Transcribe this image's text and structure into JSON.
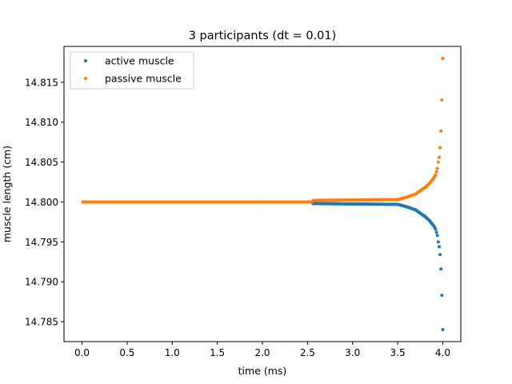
{
  "chart_data": {
    "type": "scatter",
    "title": "3 participants (dt = 0.01)",
    "xlabel": "time (ms)",
    "ylabel": "muscle length (cm)",
    "xlim": [
      -0.2,
      4.2
    ],
    "ylim": [
      14.7825,
      14.8195
    ],
    "xticks": [
      0.0,
      0.5,
      1.0,
      1.5,
      2.0,
      2.5,
      3.0,
      3.5,
      4.0
    ],
    "xtick_labels": [
      "0.0",
      "0.5",
      "1.0",
      "1.5",
      "2.0",
      "2.5",
      "3.0",
      "3.5",
      "4.0"
    ],
    "yticks": [
      14.785,
      14.79,
      14.795,
      14.8,
      14.805,
      14.81,
      14.815
    ],
    "ytick_labels": [
      "14.785",
      "14.790",
      "14.795",
      "14.800",
      "14.805",
      "14.810",
      "14.815"
    ],
    "grid": false,
    "legend_position": "upper-left",
    "x_range": {
      "start": 0.01,
      "end": 4.0,
      "step": 0.01
    },
    "series": [
      {
        "name": "active muscle",
        "color": "#1f77b4",
        "baseline": 14.8,
        "offset_start": 2.56,
        "initial_offset": -0.0002,
        "x": [
          3.5,
          3.6,
          3.7,
          3.8,
          3.85,
          3.9,
          3.92,
          3.94,
          3.95,
          3.96,
          3.97,
          3.98,
          3.99,
          4.0
        ],
        "y": [
          14.7997,
          14.7994,
          14.799,
          14.7982,
          14.7977,
          14.797,
          14.7966,
          14.7958,
          14.795,
          14.7944,
          14.7934,
          14.7916,
          14.7883,
          14.784
        ]
      },
      {
        "name": "passive muscle",
        "color": "#ff7f0e",
        "baseline": 14.8,
        "offset_start": 2.56,
        "initial_offset": 0.0002,
        "x": [
          3.5,
          3.6,
          3.7,
          3.8,
          3.85,
          3.9,
          3.92,
          3.94,
          3.95,
          3.96,
          3.97,
          3.98,
          3.99,
          4.0
        ],
        "y": [
          14.8003,
          14.8006,
          14.801,
          14.8018,
          14.8023,
          14.803,
          14.8034,
          14.8042,
          14.805,
          14.8056,
          14.8068,
          14.8089,
          14.8128,
          14.818
        ]
      }
    ]
  }
}
